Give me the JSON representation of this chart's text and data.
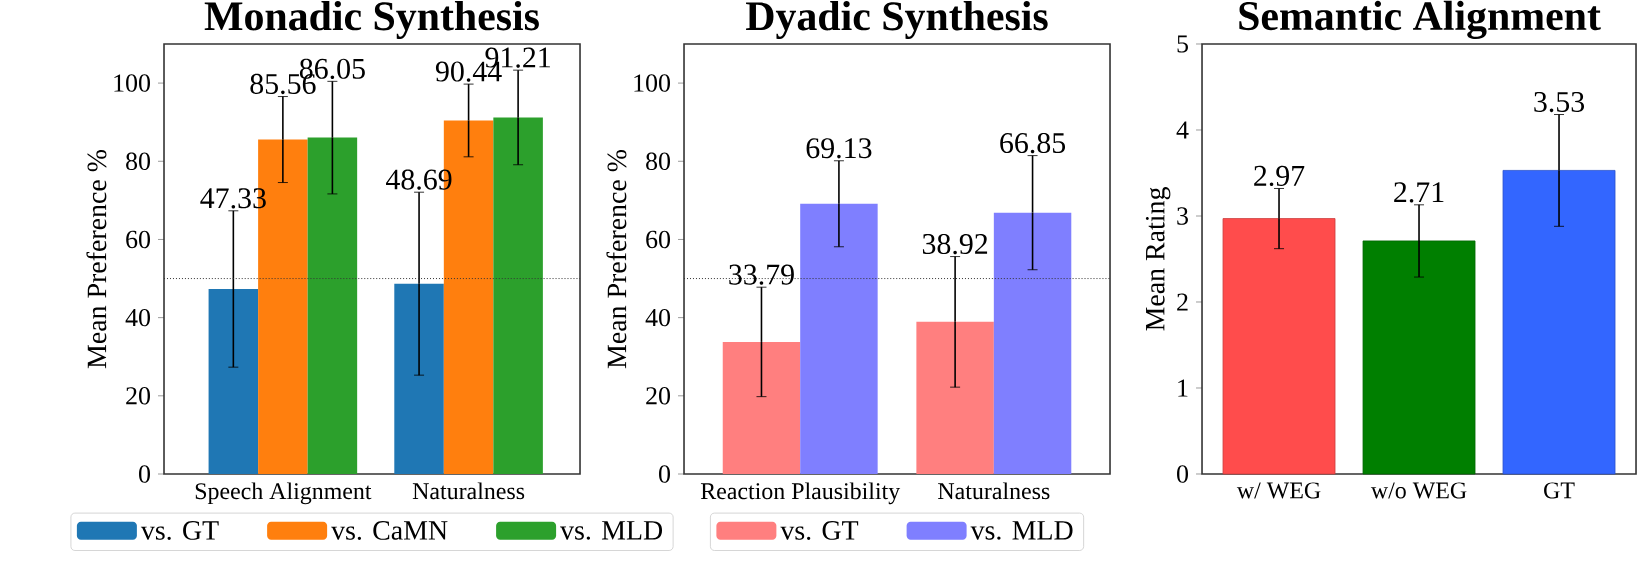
{
  "chart_data": [
    {
      "type": "bar",
      "title": "Monadic Synthesis",
      "ylabel": "Mean Preference %",
      "categories": [
        "Speech Alignment",
        "Naturalness"
      ],
      "series": [
        {
          "name": "vs. GT",
          "color": "#1f77b4",
          "values": [
            47.33,
            48.69
          ],
          "errors": [
            20,
            23.4
          ]
        },
        {
          "name": "vs. CaMN",
          "color": "#ff7f0e",
          "values": [
            85.56,
            90.44
          ],
          "errors": [
            11,
            9.3
          ]
        },
        {
          "name": "vs. MLD",
          "color": "#2ca02c",
          "values": [
            86.05,
            91.21
          ],
          "errors": [
            14.4,
            12.1
          ]
        }
      ],
      "ylim": [
        0,
        110
      ],
      "yticks": [
        0,
        20,
        40,
        60,
        80,
        100
      ],
      "data_labels": true,
      "legend": "bottom",
      "ref_lines": [
        {
          "axis": "y",
          "value": 50,
          "line_style": "dotted",
          "color": "#333333"
        }
      ]
    },
    {
      "type": "bar",
      "title": "Dyadic Synthesis",
      "ylabel": "Mean Preference %",
      "categories": [
        "Reaction Plausibility",
        "Naturalness"
      ],
      "series": [
        {
          "name": "vs. GT",
          "color": "#ff7f7f",
          "values": [
            33.79,
            38.92
          ],
          "errors": [
            14,
            16.7
          ]
        },
        {
          "name": "vs. MLD",
          "color": "#7f7fff",
          "values": [
            69.13,
            66.85
          ],
          "errors": [
            11,
            14.6
          ]
        }
      ],
      "ylim": [
        0,
        110
      ],
      "yticks": [
        0,
        20,
        40,
        60,
        80,
        100
      ],
      "data_labels": true,
      "legend": "bottom",
      "ref_lines": [
        {
          "axis": "y",
          "value": 50,
          "line_style": "dotted",
          "color": "#333333"
        }
      ]
    },
    {
      "type": "bar",
      "title": "Semantic Alignment",
      "ylabel": "Mean Rating",
      "categories": [
        "w/ WEG",
        "w/o WEG",
        "GT"
      ],
      "values": [
        2.97,
        2.71,
        3.53
      ],
      "errors": [
        0.35,
        0.42,
        0.65
      ],
      "colors": [
        "#ff4c4c",
        "#007f00",
        "#3366ff"
      ],
      "ylim": [
        0,
        5
      ],
      "yticks": [
        0,
        1,
        2,
        3,
        4,
        5
      ],
      "data_labels": true
    }
  ]
}
